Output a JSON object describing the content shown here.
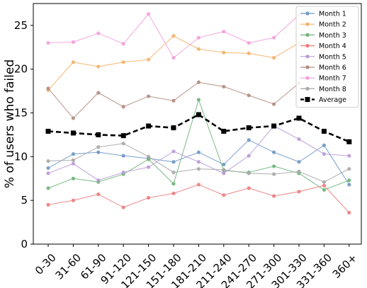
{
  "chart_data": {
    "type": "line",
    "categories": [
      "0-30",
      "31-60",
      "61-90",
      "91-120",
      "121-150",
      "151-180",
      "181-210",
      "211-240",
      "241-270",
      "271-300",
      "301-330",
      "331-360",
      "360+"
    ],
    "ylabel": "% of users who failed",
    "xlabel": "",
    "ylim": [
      0,
      27.5
    ],
    "yticks": [
      0,
      5,
      10,
      15,
      20,
      25
    ],
    "grid": false,
    "legend": "top-right",
    "series": [
      {
        "name": "Month 1",
        "color": "#6f98c8",
        "marker": "circle",
        "values": [
          8.7,
          10.3,
          10.5,
          10.1,
          9.8,
          9.4,
          10.5,
          9.1,
          11.9,
          10.5,
          9.4,
          11.3,
          6.8
        ]
      },
      {
        "name": "Month 2",
        "color": "#f4b26a",
        "marker": "circle",
        "values": [
          17.6,
          20.8,
          20.3,
          20.8,
          21.1,
          23.8,
          22.3,
          21.9,
          21.8,
          21.3,
          23.0,
          22.2,
          null
        ]
      },
      {
        "name": "Month 3",
        "color": "#6fb57a",
        "marker": "circle",
        "values": [
          6.4,
          7.5,
          7.1,
          8.0,
          9.7,
          6.9,
          16.5,
          8.4,
          8.2,
          8.9,
          8.1,
          6.2,
          7.3
        ]
      },
      {
        "name": "Month 4",
        "color": "#ec7e7e",
        "marker": "circle",
        "values": [
          4.5,
          5.0,
          5.7,
          4.2,
          5.3,
          5.8,
          6.8,
          5.6,
          6.4,
          5.5,
          6.0,
          6.7,
          3.6
        ]
      },
      {
        "name": "Month 5",
        "color": "#b99bd6",
        "marker": "circle",
        "values": [
          8.1,
          9.2,
          7.3,
          8.2,
          8.8,
          10.6,
          9.4,
          8.1,
          10.1,
          13.5,
          12.0,
          10.3,
          10.1
        ]
      },
      {
        "name": "Month 6",
        "color": "#b38c80",
        "marker": "circle",
        "values": [
          17.8,
          14.4,
          17.3,
          15.7,
          16.9,
          16.4,
          18.5,
          18.0,
          17.0,
          16.0,
          18.4,
          null,
          null
        ]
      },
      {
        "name": "Month 7",
        "color": "#f49fdc",
        "marker": "circle",
        "values": [
          23.0,
          23.1,
          24.1,
          22.9,
          26.3,
          21.3,
          23.6,
          24.3,
          23.0,
          23.6,
          26.2,
          null,
          null
        ]
      },
      {
        "name": "Month 8",
        "color": "#a8a8a8",
        "marker": "circle",
        "values": [
          9.5,
          9.6,
          11.1,
          11.5,
          10.0,
          8.2,
          8.6,
          8.5,
          8.1,
          8.0,
          8.3,
          7.1,
          8.6
        ]
      },
      {
        "name": "Average",
        "color": "#000000",
        "marker": "square",
        "dashed": true,
        "values": [
          12.9,
          12.7,
          12.5,
          12.4,
          13.5,
          13.3,
          14.8,
          12.9,
          13.3,
          13.5,
          14.4,
          12.9,
          11.7
        ]
      }
    ]
  }
}
